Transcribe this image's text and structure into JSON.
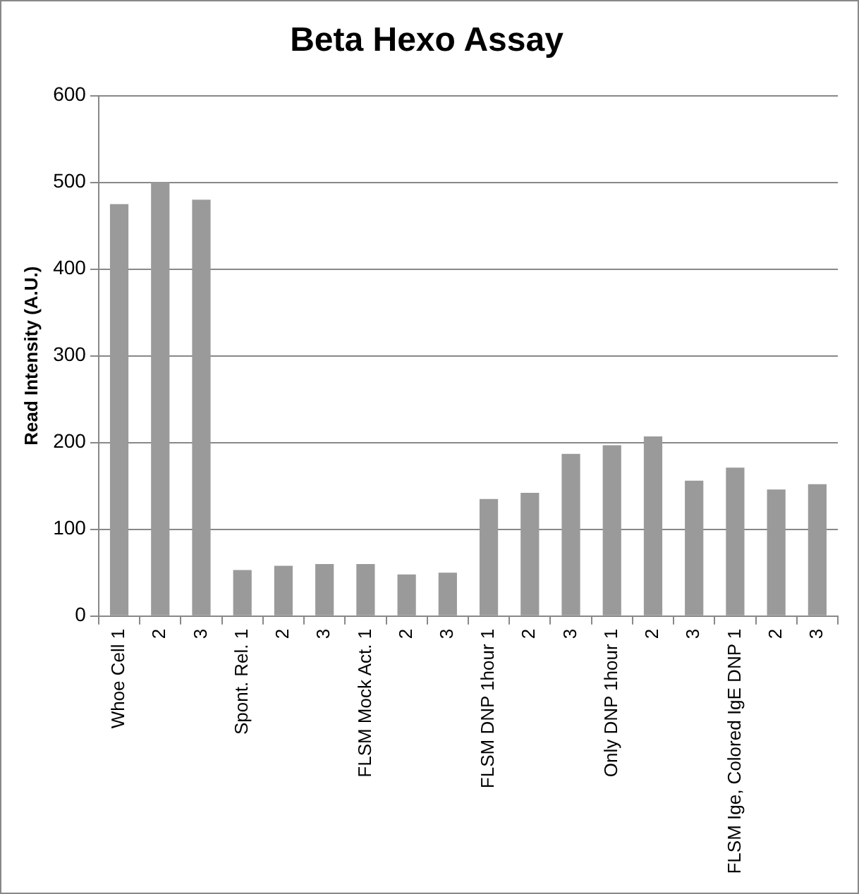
{
  "chart_data": {
    "type": "bar",
    "title": "Beta Hexo Assay",
    "ylabel": "Read Intensity (A.U.)",
    "categories": [
      "Whoe Cell 1",
      "2",
      "3",
      "Spont. Rel. 1",
      "2",
      "3",
      "FLSM Mock Act. 1",
      "2",
      "3",
      "FLSM DNP 1hour 1",
      "2",
      "3",
      "Only DNP 1hour 1",
      "2",
      "3",
      "FLSM Ige, Colored IgE DNP 1",
      "2",
      "3"
    ],
    "values": [
      475,
      500,
      480,
      53,
      58,
      60,
      60,
      48,
      50,
      135,
      142,
      187,
      197,
      207,
      156,
      171,
      146,
      152
    ],
    "color": "#9a9a9a",
    "ylim": [
      0,
      600
    ],
    "yticks": [
      0,
      100,
      200,
      300,
      400,
      500,
      600
    ],
    "grid": "y",
    "legend": false
  }
}
